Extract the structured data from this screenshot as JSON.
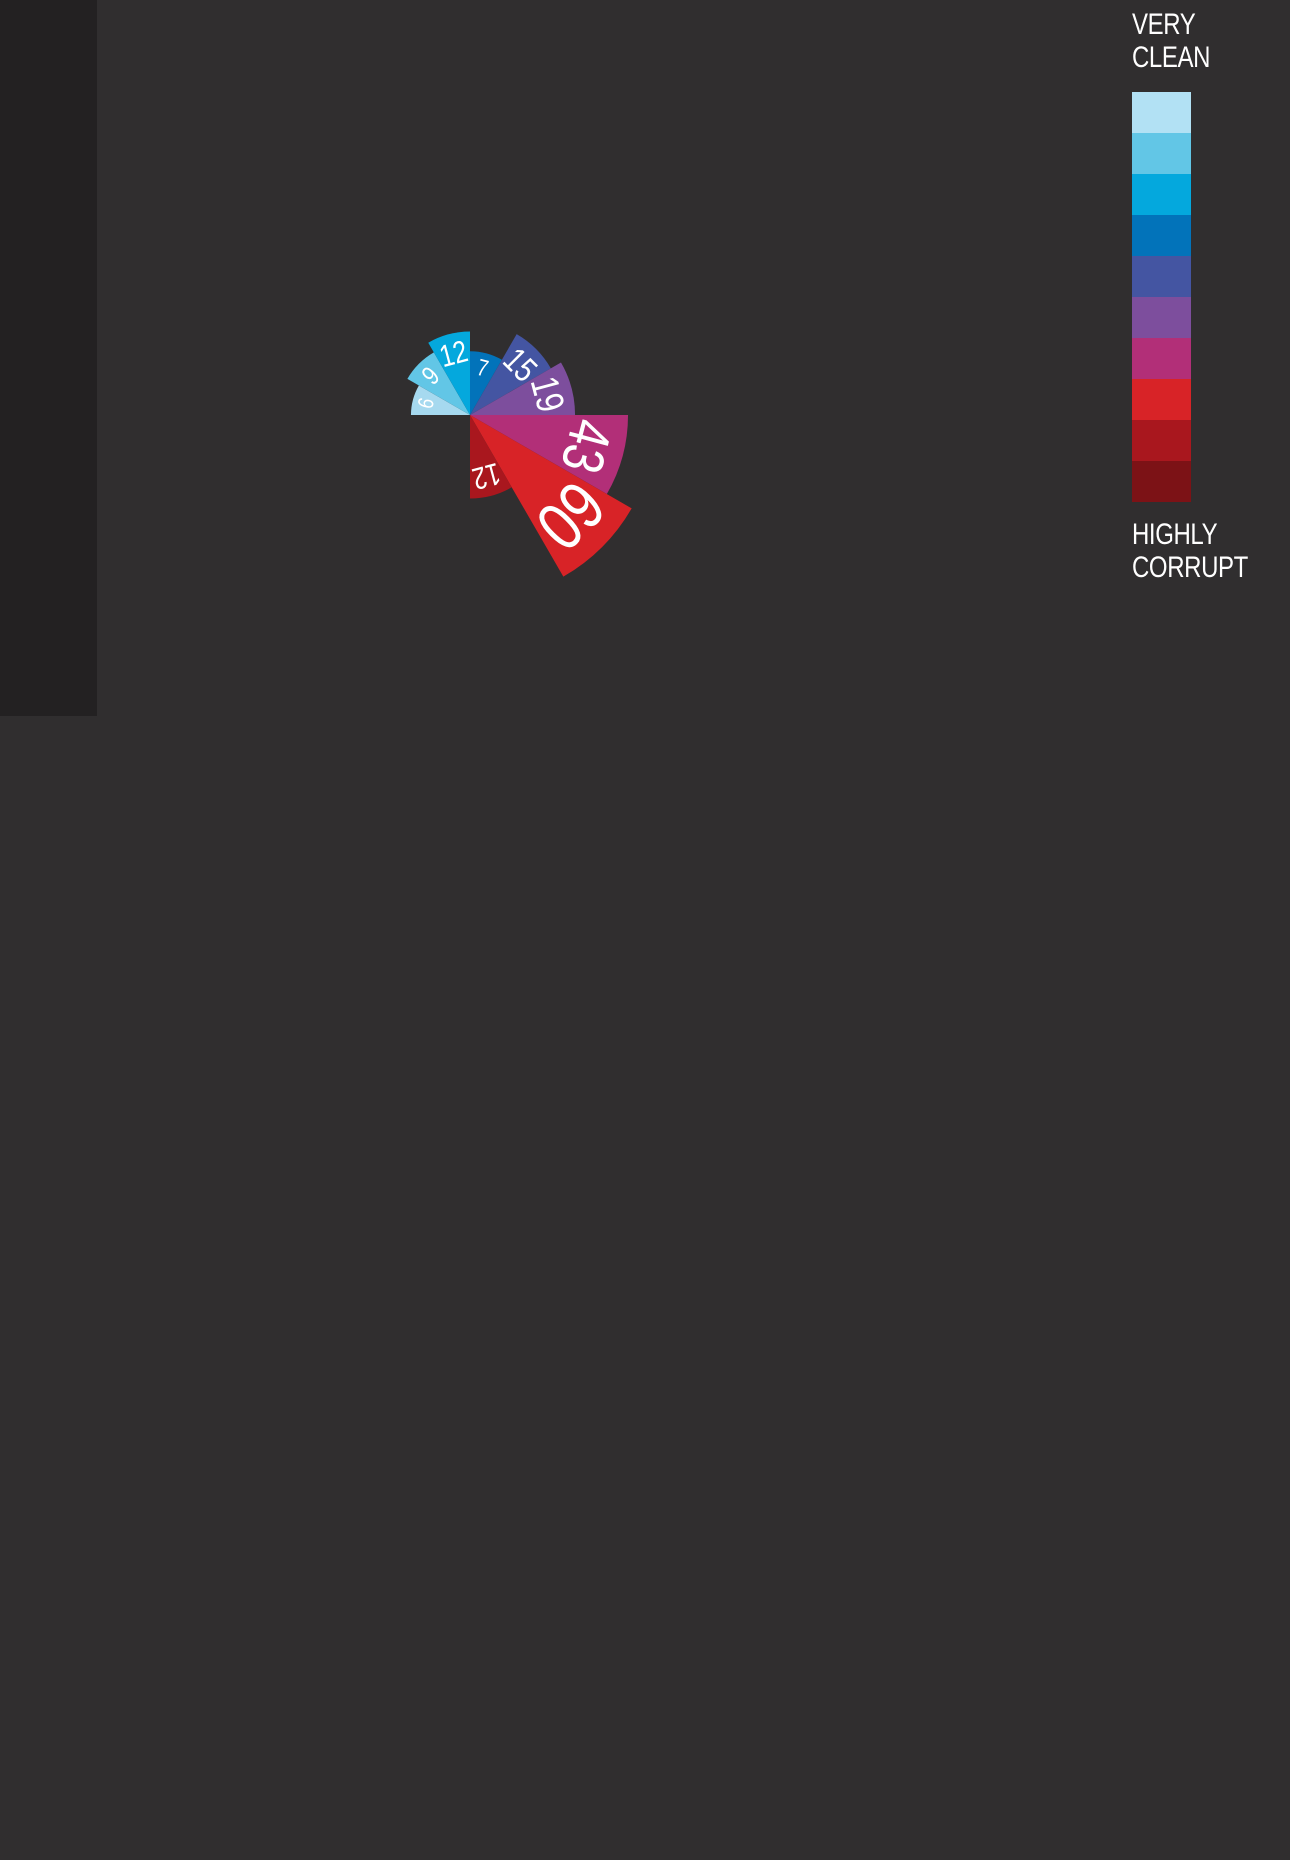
{
  "chart_data": {
    "type": "polar-area",
    "segments": [
      {
        "value": 6,
        "color": "#a6d9ef"
      },
      {
        "value": 9,
        "color": "#62c6e6"
      },
      {
        "value": 12,
        "color": "#04a8dd"
      },
      {
        "value": 7,
        "color": "#0273ba"
      },
      {
        "value": 15,
        "color": "#4455a2"
      },
      {
        "value": 19,
        "color": "#7d4e9d"
      },
      {
        "value": 43,
        "color": "#b22f78"
      },
      {
        "value": 60,
        "color": "#d82327"
      },
      {
        "value": 12,
        "color": "#a9171e"
      }
    ],
    "legend": {
      "top_label_line1": "VERY",
      "top_label_line2": "CLEAN",
      "bottom_label_line1": "HIGHLY",
      "bottom_label_line2": "CORRUPT",
      "scale_colors": [
        "#b2e1f4",
        "#62c6e6",
        "#04a8dd",
        "#0273ba",
        "#4455a2",
        "#7d4e9d",
        "#b22f78",
        "#d82327",
        "#a9171e",
        "#7c1216"
      ]
    }
  }
}
